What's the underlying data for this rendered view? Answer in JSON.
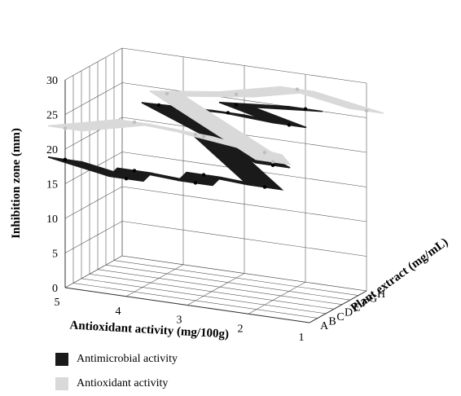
{
  "chart_data": {
    "type": "surface3d",
    "xlabel": "Antioxidant activity (mg/100g)",
    "ylabel": "Plant extract (mg/mL)",
    "zlabel": "Inhibition zone (mm)",
    "x_ticks": [
      "5",
      "4",
      "3",
      "2",
      "1"
    ],
    "y_ticks": [
      "A",
      "B",
      "C",
      "D",
      "E",
      "F",
      "G",
      "H"
    ],
    "z_ticks": [
      "0",
      "5",
      "10",
      "15",
      "20",
      "25",
      "30"
    ],
    "zlim": [
      0,
      30
    ],
    "grid": true,
    "legend_position": "bottom-left",
    "series": [
      {
        "name": "Antimicrobial activity",
        "color": "#1a1a1a",
        "points": [
          {
            "x": 5,
            "y": "A",
            "z": 18.5
          },
          {
            "x": 4,
            "y": "A",
            "z": 17
          },
          {
            "x": 4,
            "y": "B",
            "z": 17.5
          },
          {
            "x": 3,
            "y": "B",
            "z": 17
          },
          {
            "x": 3,
            "y": "C",
            "z": 17.5
          },
          {
            "x": 2,
            "y": "C",
            "z": 17
          },
          {
            "x": 3,
            "y": "D",
            "z": 22
          },
          {
            "x": 2,
            "y": "D",
            "z": 19.5
          },
          {
            "x": 4,
            "y": "E",
            "z": 25
          },
          {
            "x": 3,
            "y": "F",
            "z": 24.5
          },
          {
            "x": 2,
            "y": "F",
            "z": 24
          },
          {
            "x": 3,
            "y": "G",
            "z": 25
          },
          {
            "x": 2,
            "y": "H",
            "z": 25
          }
        ]
      },
      {
        "name": "Antioxidant activity",
        "color": "#d9d9d9",
        "points": [
          {
            "x": 5,
            "y": "A",
            "z": 23
          },
          {
            "x": 4,
            "y": "B",
            "z": 24.5
          },
          {
            "x": 3,
            "y": "B",
            "z": 24
          },
          {
            "x": 3,
            "y": "C",
            "z": 23
          },
          {
            "x": 2,
            "y": "C",
            "z": 22
          },
          {
            "x": 2,
            "y": "D",
            "z": 20
          },
          {
            "x": 4,
            "y": "F",
            "z": 26
          },
          {
            "x": 3,
            "y": "G",
            "z": 26.5
          },
          {
            "x": 2,
            "y": "G",
            "z": 28.5
          },
          {
            "x": 1,
            "y": "H",
            "z": 26
          }
        ]
      }
    ]
  }
}
